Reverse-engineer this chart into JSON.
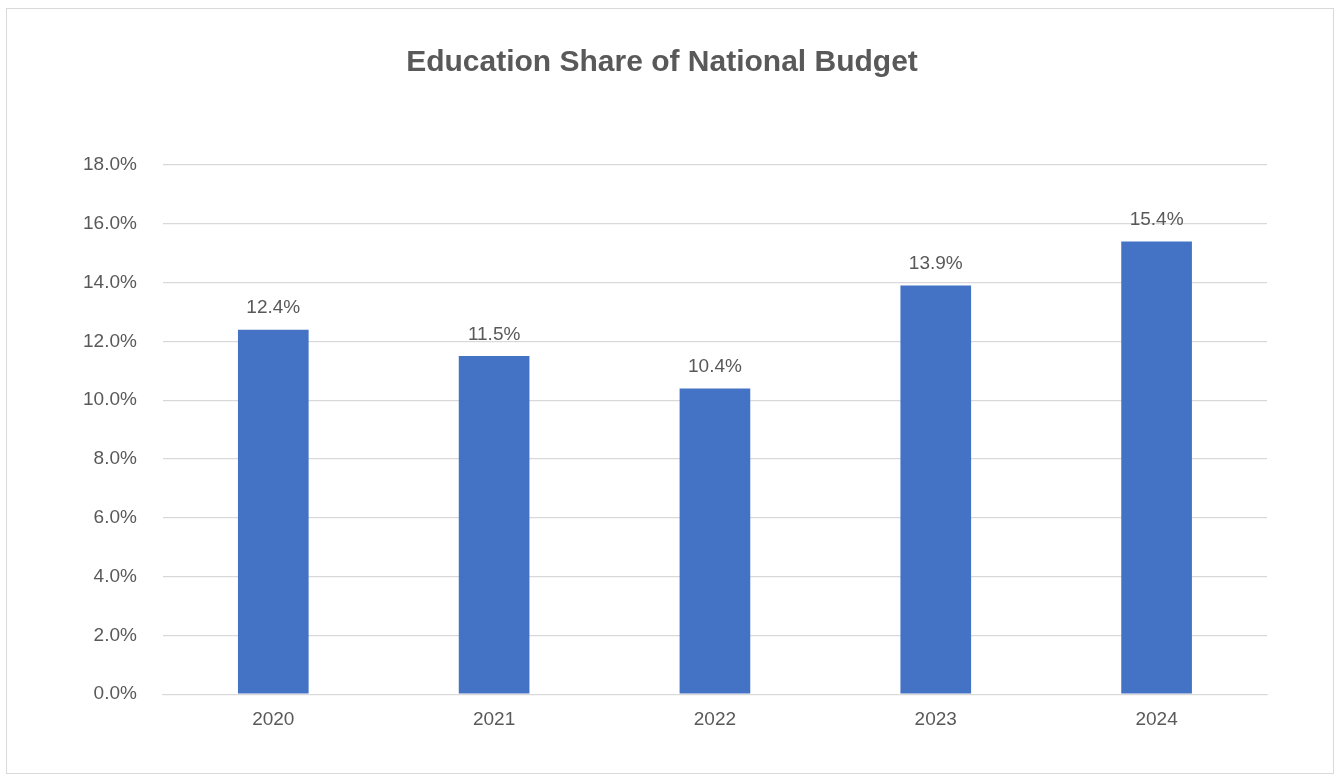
{
  "chart_data": {
    "type": "bar",
    "title": "Education Share of National Budget",
    "categories": [
      "2020",
      "2021",
      "2022",
      "2023",
      "2024"
    ],
    "values": [
      12.4,
      11.5,
      10.4,
      13.9,
      15.4
    ],
    "value_labels": [
      "12.4%",
      "11.5%",
      "10.4%",
      "13.9%",
      "15.4%"
    ],
    "color": "#4472c4",
    "ylim": [
      0,
      18
    ],
    "yticks": [
      {
        "value": 0,
        "label": "0.0%"
      },
      {
        "value": 2,
        "label": "2.0%"
      },
      {
        "value": 4,
        "label": "4.0%"
      },
      {
        "value": 6,
        "label": "6.0%"
      },
      {
        "value": 8,
        "label": "8.0%"
      },
      {
        "value": 10,
        "label": "10.0%"
      },
      {
        "value": 12,
        "label": "12.0%"
      },
      {
        "value": 14,
        "label": "14.0%"
      },
      {
        "value": 16,
        "label": "16.0%"
      },
      {
        "value": 18,
        "label": "18.0%"
      }
    ],
    "grid": "y"
  }
}
